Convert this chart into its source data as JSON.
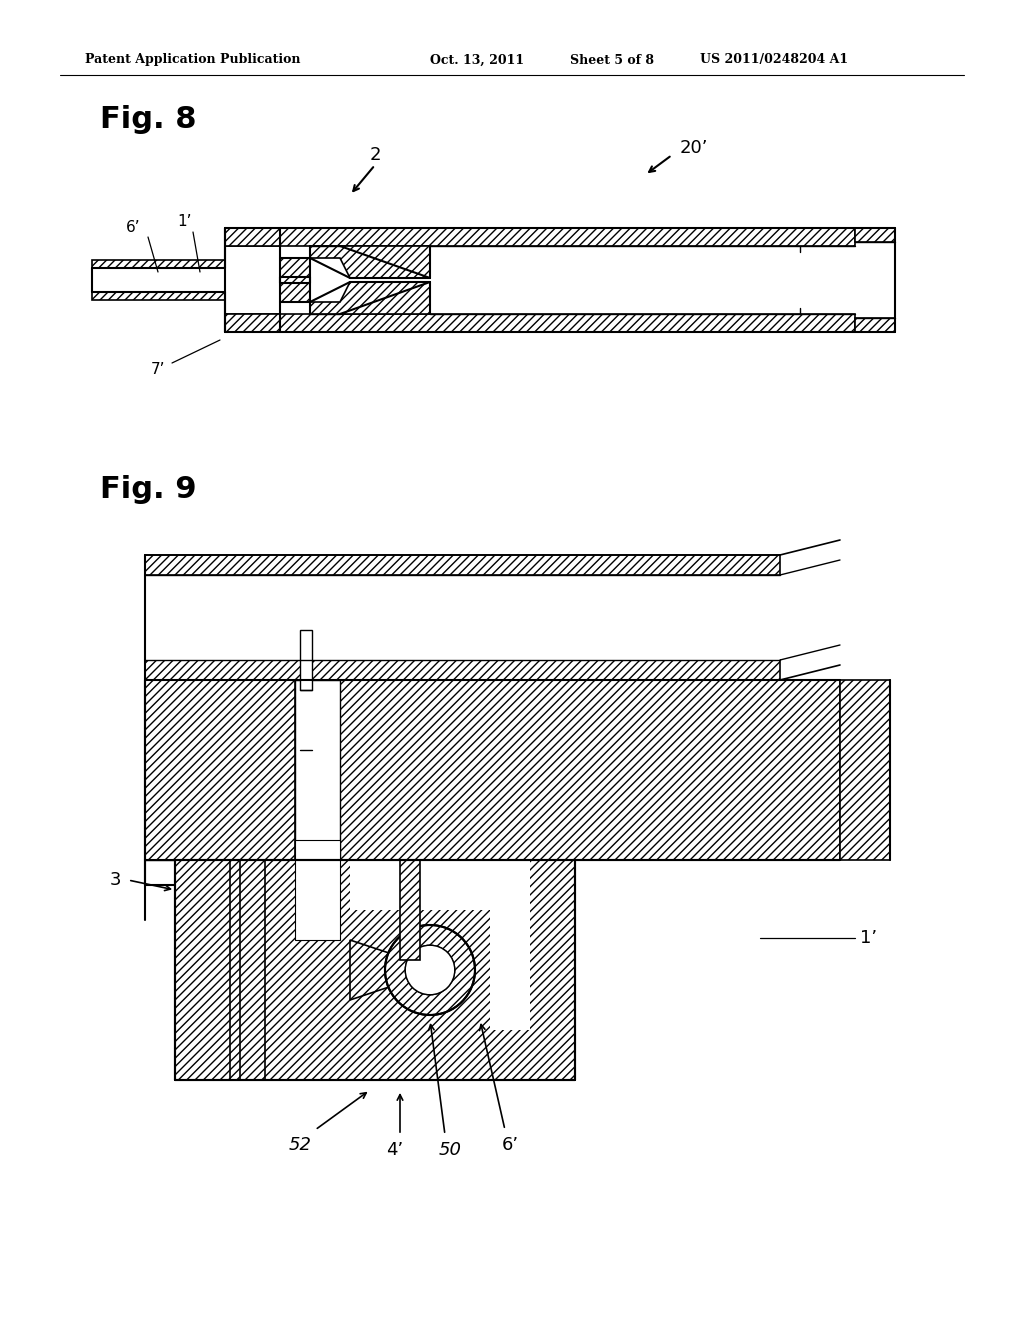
{
  "bg_color": "#ffffff",
  "header_text": "Patent Application Publication",
  "header_date": "Oct. 13, 2011",
  "header_sheet": "Sheet 5 of 8",
  "header_patent": "US 2011/0248204 A1",
  "fig8_label": "Fig. 8",
  "fig9_label": "Fig. 9",
  "line_color": "#000000",
  "hatch_color": "#000000",
  "hatch_pattern": "////",
  "label_20prime": "20’",
  "label_2": "2",
  "label_1prime_fig8": "1’",
  "label_6prime_fig8": "6’",
  "label_7prime": "7’",
  "label_3": "3",
  "label_1prime_fig9": "1’",
  "label_4prime": "4’",
  "label_50": "50",
  "label_52": "52",
  "label_6prime_fig9": "6’"
}
